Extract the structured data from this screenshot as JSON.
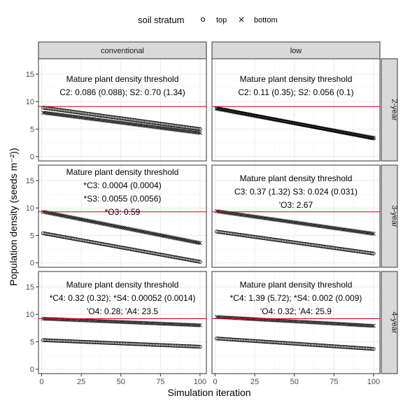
{
  "chart_data": {
    "type": "scatter",
    "xlabel": "Simulation iteration",
    "ylabel": "Population density (seeds m⁻²))",
    "xlim": [
      -2,
      104
    ],
    "ylim": [
      -0.8,
      17.8
    ],
    "x_ticks": [
      0,
      25,
      50,
      75,
      100
    ],
    "y_ticks": [
      0,
      5,
      10,
      15
    ],
    "grid": true,
    "legend": {
      "title": "soil stratum",
      "position": "top",
      "entries": [
        {
          "label": "top",
          "marker": "circle"
        },
        {
          "label": "bottom",
          "marker": "cross"
        }
      ]
    },
    "columns": [
      "conventional",
      "low"
    ],
    "rows": [
      "2-year",
      "3-year",
      "4-year"
    ],
    "threshold_color": "#cc0000",
    "marker_color": "#000000",
    "panels": [
      {
        "row": "2-year",
        "column": "conventional",
        "threshold": 9.1,
        "annotation": [
          "Mature plant density threshold",
          "C2: 0.086 (0.088); S2: 0.70 (1.34)"
        ],
        "series": [
          {
            "name": "top",
            "x_start": 1,
            "x_end": 100,
            "y_start": 8.9,
            "y_end": 5.0
          },
          {
            "name": "bottom",
            "x_start": 1,
            "x_end": 100,
            "y_start": 8.0,
            "y_end": 4.3
          }
        ]
      },
      {
        "row": "2-year",
        "column": "low",
        "threshold": 9.1,
        "annotation": [
          "Mature plant density threshold",
          "C2: 0.11 (0.35); S2: 0.056 (0.1)"
        ],
        "series": [
          {
            "name": "top",
            "x_start": 1,
            "x_end": 100,
            "y_start": 8.8,
            "y_end": 3.3
          },
          {
            "name": "bottom",
            "x_start": 1,
            "x_end": 100,
            "y_start": 8.7,
            "y_end": 3.4
          }
        ]
      },
      {
        "row": "3-year",
        "column": "conventional",
        "threshold": 9.3,
        "annotation": [
          "Mature plant density threshold",
          "*C3: 0.0004 (0.0004)",
          "*S3: 0.0055 (0.0056)",
          "*O3: 0.59"
        ],
        "series": [
          {
            "name": "top",
            "x_start": 1,
            "x_end": 100,
            "y_start": 5.4,
            "y_end": 0.2
          },
          {
            "name": "bottom",
            "x_start": 1,
            "x_end": 100,
            "y_start": 9.3,
            "y_end": 3.6
          }
        ]
      },
      {
        "row": "3-year",
        "column": "low",
        "threshold": 9.3,
        "annotation": [
          "Mature plant density threshold",
          "C3: 0.37 (1.32)  S3: 0.024 (0.031)",
          "'O3: 2.67"
        ],
        "series": [
          {
            "name": "top",
            "x_start": 1,
            "x_end": 100,
            "y_start": 5.7,
            "y_end": 1.7
          },
          {
            "name": "bottom",
            "x_start": 1,
            "x_end": 100,
            "y_start": 9.4,
            "y_end": 5.3
          }
        ]
      },
      {
        "row": "4-year",
        "column": "conventional",
        "threshold": 9.2,
        "annotation": [
          "Mature plant density threshold",
          "*C4: 0.32 (0.32); *S4: 0.00052 (0.0014)",
          "'O4: 0.28; 'A4: 23.5"
        ],
        "series": [
          {
            "name": "top",
            "x_start": 1,
            "x_end": 100,
            "y_start": 5.3,
            "y_end": 4.1
          },
          {
            "name": "bottom",
            "x_start": 1,
            "x_end": 100,
            "y_start": 9.2,
            "y_end": 8.0
          }
        ]
      },
      {
        "row": "4-year",
        "column": "low",
        "threshold": 9.2,
        "annotation": [
          "Mature plant density threshold",
          "*C4: 1.39 (5.72); *S4: 0.002 (0.009)",
          "'O4: 0.32; 'A4: 25.9"
        ],
        "series": [
          {
            "name": "top",
            "x_start": 1,
            "x_end": 100,
            "y_start": 5.6,
            "y_end": 3.7
          },
          {
            "name": "bottom",
            "x_start": 1,
            "x_end": 100,
            "y_start": 9.5,
            "y_end": 7.9
          }
        ]
      }
    ]
  }
}
